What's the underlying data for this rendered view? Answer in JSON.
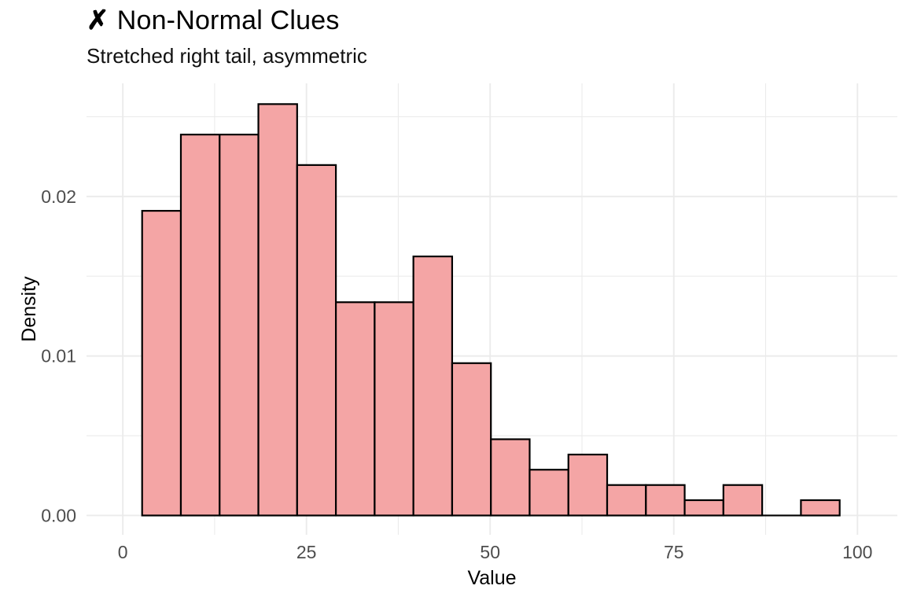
{
  "chart_data": {
    "type": "bar",
    "subtype": "histogram",
    "title_icon": "✗",
    "title": "Non-Normal Clues",
    "subtitle": "Stretched right tail, asymmetric",
    "xlabel": "Value",
    "ylabel": "Density",
    "x_ticks": [
      0,
      25,
      50,
      75,
      100
    ],
    "x_tick_labels": [
      "0",
      "25",
      "50",
      "75",
      "100"
    ],
    "x_minor_ticks": [
      12.5,
      37.5,
      62.5,
      87.5
    ],
    "y_ticks": [
      0,
      0.01,
      0.02
    ],
    "y_tick_labels": [
      "0.00",
      "0.01",
      "0.02"
    ],
    "y_minor_ticks": [
      0.005,
      0.015,
      0.025
    ],
    "xlim": [
      -4.94,
      105.43
    ],
    "ylim": [
      -0.00121,
      0.02709
    ],
    "grid": true,
    "legend_position": "none",
    "bin_start": 2.63,
    "bin_width": 5.275,
    "n_bins": 18,
    "counts": [
      20,
      25,
      25,
      27,
      23,
      14,
      14,
      17,
      10,
      5,
      3,
      4,
      2,
      2,
      1,
      2,
      0,
      1
    ],
    "densities": [
      0.0191,
      0.02388,
      0.02388,
      0.02579,
      0.02197,
      0.01337,
      0.01337,
      0.01624,
      0.00955,
      0.00478,
      0.00287,
      0.00382,
      0.00191,
      0.00191,
      0.00096,
      0.00191,
      0.0,
      0.00096
    ],
    "colors": {
      "bar_fill": "#F4A5A5",
      "bar_stroke": "#000000",
      "grid": "#EBEBEB",
      "tick_label": "#4D4D4D",
      "axis_title": "#000000",
      "title_text": "#000000",
      "background": "#FFFFFF"
    }
  }
}
